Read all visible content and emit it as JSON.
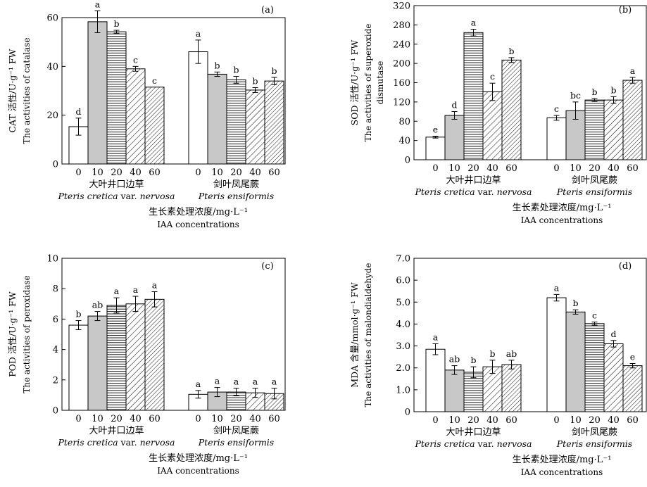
{
  "chart_data": [
    {
      "type": "bar",
      "panel_label": "(a)",
      "ylabel_cn": "CAT 活性/U·g⁻¹ FW",
      "ylabel_en": "The activities of catalase",
      "ylim": [
        0,
        60
      ],
      "yticks": [
        0,
        20,
        40,
        60
      ],
      "categories": [
        "0",
        "10",
        "20",
        "40",
        "60"
      ],
      "groups": [
        {
          "name_cn": "大叶井口边草",
          "name_en": "Pteris cretica var. nervosa",
          "values": [
            15.3,
            58.3,
            54.2,
            39.0,
            31.5
          ],
          "errors": [
            3.5,
            4.5,
            0.6,
            1.0,
            0
          ],
          "letters": [
            "d",
            "a",
            "b",
            "c",
            "c"
          ]
        },
        {
          "name_cn": "剑叶凤尾蕨",
          "name_en": "Pteris ensiformis",
          "values": [
            46.0,
            36.8,
            34.5,
            30.3,
            34.0
          ],
          "errors": [
            4.8,
            0.9,
            1.4,
            1.0,
            1.5
          ],
          "letters": [
            "a",
            "b",
            "b",
            "b",
            "b"
          ]
        }
      ],
      "xlabel_cn": "生长素处理浓度/mg·L⁻¹",
      "xlabel_en": "IAA concentrations"
    },
    {
      "type": "bar",
      "panel_label": "(b)",
      "ylabel_cn": "SOD 活性/U·g⁻¹ FW",
      "ylabel_en": "The activities of superoxide dismutase",
      "ylim": [
        0,
        320
      ],
      "yticks": [
        0,
        40,
        80,
        120,
        160,
        200,
        240,
        280,
        320
      ],
      "categories": [
        "0",
        "10",
        "20",
        "40",
        "60"
      ],
      "groups": [
        {
          "name_cn": "大叶井口边草",
          "name_en": "Pteris cretica var. nervosa",
          "values": [
            47,
            92,
            264,
            141,
            207
          ],
          "errors": [
            2,
            8,
            7,
            18,
            5
          ],
          "letters": [
            "e",
            "d",
            "a",
            "c",
            "b"
          ]
        },
        {
          "name_cn": "剑叶凤尾蕨",
          "name_en": "Pteris ensiformis",
          "values": [
            87,
            102,
            124,
            124,
            165
          ],
          "errors": [
            5,
            18,
            3,
            7,
            6
          ],
          "letters": [
            "c",
            "bc",
            "b",
            "b",
            "a"
          ]
        }
      ],
      "xlabel_cn": "生长素处理浓度/mg·L⁻¹",
      "xlabel_en": "IAA concentrations"
    },
    {
      "type": "bar",
      "panel_label": "(c)",
      "ylabel_cn": "POD 活性/U·g⁻¹ FW",
      "ylabel_en": "The activities of peroxidase",
      "ylim": [
        0,
        10
      ],
      "yticks": [
        0,
        2,
        4,
        6,
        8,
        10
      ],
      "categories": [
        "0",
        "10",
        "20",
        "40",
        "60"
      ],
      "groups": [
        {
          "name_cn": "大叶井口边草",
          "name_en": "Pteris cretica var. nervosa",
          "values": [
            5.6,
            6.2,
            6.9,
            7.0,
            7.3
          ],
          "errors": [
            0.3,
            0.3,
            0.5,
            0.5,
            0.5
          ],
          "letters": [
            "b",
            "ab",
            "a",
            "a",
            "a"
          ]
        },
        {
          "name_cn": "剑叶凤尾蕨",
          "name_en": "Pteris ensiformis",
          "values": [
            1.05,
            1.2,
            1.2,
            1.15,
            1.1
          ],
          "errors": [
            0.25,
            0.3,
            0.25,
            0.3,
            0.35
          ],
          "letters": [
            "a",
            "a",
            "a",
            "a",
            "a"
          ]
        }
      ],
      "xlabel_cn": "生长素处理浓度/mg·L⁻¹",
      "xlabel_en": "IAA concentrations"
    },
    {
      "type": "bar",
      "panel_label": "(d)",
      "ylabel_cn": "MDA 含量/mmol·g⁻¹ FW",
      "ylabel_en": "The activities of malondialdehyde",
      "ylim": [
        0,
        7.0
      ],
      "yticks": [
        "0",
        "1.0",
        "2.0",
        "3.0",
        "4.0",
        "5.0",
        "6.0",
        "7.0"
      ],
      "categories": [
        "0",
        "10",
        "20",
        "40",
        "60"
      ],
      "groups": [
        {
          "name_cn": "大叶井口边草",
          "name_en": "Pteris cretica var. nervosa",
          "values": [
            2.85,
            1.9,
            1.8,
            2.05,
            2.15
          ],
          "errors": [
            0.25,
            0.2,
            0.25,
            0.3,
            0.2
          ],
          "letters": [
            "a",
            "ab",
            "b",
            "b",
            "ab"
          ]
        },
        {
          "name_cn": "剑叶凤尾蕨",
          "name_en": "Pteris ensiformis",
          "values": [
            5.2,
            4.55,
            4.02,
            3.1,
            2.1
          ],
          "errors": [
            0.15,
            0.1,
            0.07,
            0.15,
            0.1
          ],
          "letters": [
            "a",
            "b",
            "c",
            "d",
            "e"
          ]
        }
      ],
      "xlabel_cn": "生长素处理浓度/mg·L⁻¹",
      "xlabel_en": "IAA concentrations"
    }
  ]
}
